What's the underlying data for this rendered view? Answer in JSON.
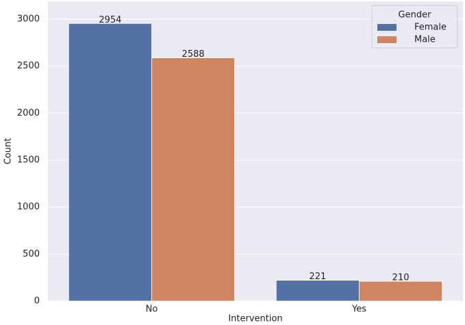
{
  "chart_data": {
    "type": "bar",
    "categories": [
      "No",
      "Yes"
    ],
    "x_label": "Intervention",
    "y_label": "Count",
    "legend_title": "Gender",
    "legend_position": "upper right",
    "series": [
      {
        "name": "Female",
        "color": "#5471a5",
        "values": [
          2954,
          221
        ]
      },
      {
        "name": "Male",
        "color": "#cf8560",
        "values": [
          2588,
          210
        ]
      }
    ],
    "ylim": [
      0,
      3189
    ],
    "yticks": [
      0,
      500,
      1000,
      1500,
      2000,
      2500,
      3000
    ],
    "grid": true
  }
}
